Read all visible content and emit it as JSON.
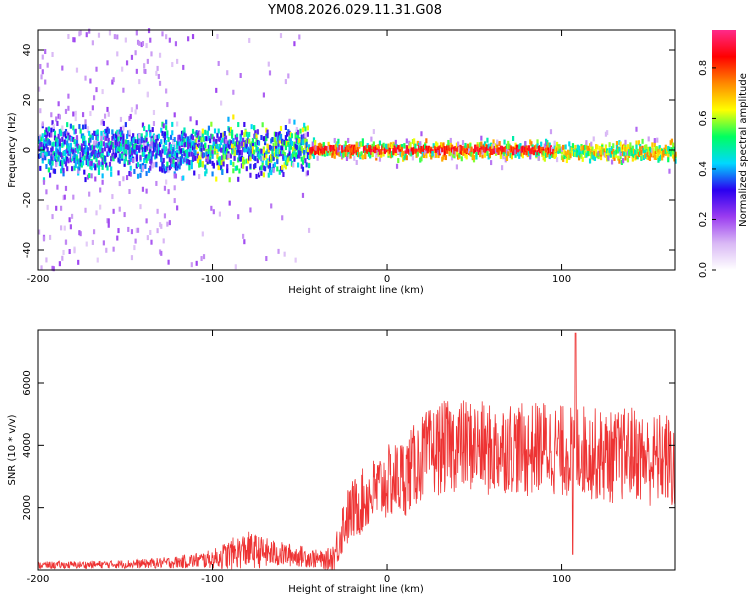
{
  "figure": {
    "title": "YM08.2026.029.11.31.G08"
  },
  "chart_data": [
    {
      "type": "heatmap",
      "title": "YM08.2026.029.11.31.G08",
      "xlabel": "Height of straight line (km)",
      "ylabel": "Frequency (Hz)",
      "xlim": [
        -200,
        165
      ],
      "ylim": [
        -48,
        48
      ],
      "xticks": [
        -200,
        -100,
        0,
        100
      ],
      "yticks": [
        -40,
        -20,
        0,
        20,
        40
      ],
      "grid": false,
      "colorbar": {
        "label": "Normalized spectral amplitude",
        "range": [
          0,
          0.95
        ],
        "ticks": [
          0.0,
          0.2,
          0.4,
          0.6,
          0.8
        ],
        "tick_labels": [
          "0.0",
          "0.2",
          "0.4",
          "0.6",
          "0.8"
        ],
        "colormap": [
          "#ffffff",
          "#d9b8f5",
          "#9b3cf0",
          "#2a00f0",
          "#00d8ff",
          "#00ff60",
          "#ffff00",
          "#ff8800",
          "#ff0000",
          "#ff2a8a"
        ]
      },
      "features": {
        "strong_band_center_freq_hz": 0,
        "noisy_region_km": [
          -200,
          -45
        ],
        "clean_region_km": [
          -40,
          165
        ],
        "description_values": {
          "noisy_peak_amplitude": 0.55,
          "clean_peak_amplitude": 0.9
        }
      }
    },
    {
      "type": "line",
      "title": "",
      "xlabel": "Height of straight line (km)",
      "ylabel": "SNR (10 * v/v)",
      "xlim": [
        -200,
        165
      ],
      "ylim": [
        0,
        7700
      ],
      "xticks": [
        -200,
        -100,
        0,
        100
      ],
      "yticks": [
        2000,
        4000,
        6000
      ],
      "grid": false,
      "series": [
        {
          "name": "SNR",
          "color": "#ee3333",
          "envelope_x": [
            -200,
            -180,
            -160,
            -140,
            -120,
            -100,
            -90,
            -80,
            -70,
            -60,
            -50,
            -40,
            -35,
            -30,
            -25,
            -20,
            -10,
            0,
            10,
            20,
            30,
            40,
            50,
            60,
            70,
            80,
            90,
            100,
            110,
            120,
            130,
            140,
            150,
            160,
            165
          ],
          "envelope_mean": [
            150,
            160,
            180,
            200,
            250,
            350,
            500,
            650,
            550,
            500,
            450,
            350,
            300,
            450,
            1500,
            1900,
            2400,
            2800,
            3000,
            3600,
            3900,
            4000,
            4000,
            3800,
            4000,
            3800,
            4000,
            3800,
            3900,
            3700,
            3600,
            3800,
            3500,
            3600,
            3200
          ],
          "envelope_spread": [
            120,
            120,
            130,
            150,
            200,
            300,
            500,
            600,
            500,
            400,
            350,
            300,
            300,
            600,
            900,
            1000,
            1100,
            1200,
            1300,
            1400,
            1500,
            1500,
            1500,
            1500,
            1500,
            1500,
            1500,
            1500,
            1500,
            1500,
            1500,
            1500,
            1500,
            1500,
            1500
          ],
          "peak_max": 7600
        }
      ]
    }
  ]
}
